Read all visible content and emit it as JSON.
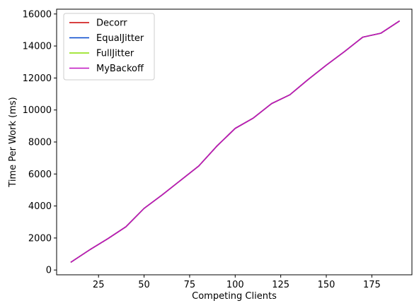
{
  "chart_data": {
    "type": "line",
    "title": "",
    "xlabel": "Competing Clients",
    "ylabel": "Time Per Work (ms)",
    "xlim": [
      2,
      197
    ],
    "ylim": [
      -300,
      16300
    ],
    "xticks": [
      25,
      50,
      75,
      100,
      125,
      150,
      175
    ],
    "yticks": [
      0,
      2000,
      4000,
      6000,
      8000,
      10000,
      12000,
      14000,
      16000
    ],
    "grid": false,
    "legend_position": "top-left",
    "x": [
      10,
      20,
      30,
      40,
      50,
      60,
      70,
      80,
      90,
      100,
      110,
      120,
      130,
      140,
      150,
      160,
      170,
      180,
      190
    ],
    "series": [
      {
        "name": "Decorr",
        "color": "#cc0000",
        "values": [
          500,
          1250,
          1950,
          2700,
          3850,
          4700,
          5600,
          6500,
          7750,
          8850,
          9500,
          10400,
          10950,
          11900,
          12800,
          13650,
          14550,
          14800,
          15550
        ]
      },
      {
        "name": "EqualJitter",
        "color": "#0044cc",
        "values": [
          500,
          1250,
          1950,
          2700,
          3850,
          4700,
          5600,
          6500,
          7750,
          8850,
          9500,
          10400,
          10950,
          11900,
          12800,
          13650,
          14550,
          14800,
          15550
        ]
      },
      {
        "name": "FullJitter",
        "color": "#88dd00",
        "values": [
          500,
          1250,
          1950,
          2700,
          3850,
          4700,
          5600,
          6500,
          7750,
          8850,
          9500,
          10400,
          10950,
          11900,
          12800,
          13650,
          14550,
          14800,
          15550
        ]
      },
      {
        "name": "MyBackoff",
        "color": "#c010c0",
        "values": [
          500,
          1250,
          1950,
          2700,
          3850,
          4700,
          5600,
          6500,
          7750,
          8850,
          9500,
          10400,
          10950,
          11900,
          12800,
          13650,
          14550,
          14800,
          15550
        ]
      }
    ]
  }
}
